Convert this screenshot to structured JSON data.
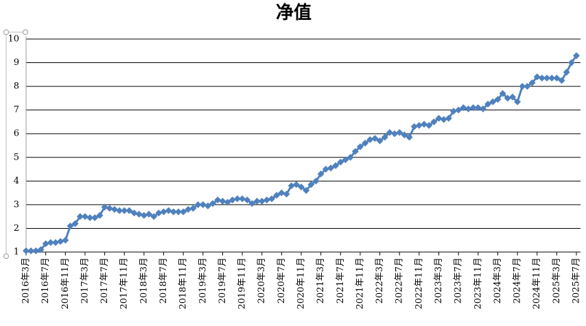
{
  "chart_data": {
    "type": "line",
    "title": "净值",
    "categories": [
      "2016年3月",
      null,
      null,
      null,
      "2016年7月",
      null,
      null,
      null,
      "2016年11月",
      null,
      null,
      null,
      "2017年3月",
      null,
      null,
      null,
      "2017年7月",
      null,
      null,
      null,
      "2017年11月",
      null,
      null,
      null,
      "2018年3月",
      null,
      null,
      null,
      "2018年7月",
      null,
      null,
      null,
      "2018年11月",
      null,
      null,
      null,
      "2019年3月",
      null,
      null,
      null,
      "2019年7月",
      null,
      null,
      null,
      "2019年11月",
      null,
      null,
      null,
      "2020年3月",
      null,
      null,
      null,
      "2020年7月",
      null,
      null,
      null,
      "2020年11月",
      null,
      null,
      null,
      "2021年3月",
      null,
      null,
      null,
      "2021年7月",
      null,
      null,
      null,
      "2021年11月",
      null,
      null,
      null,
      "2022年3月",
      null,
      null,
      null,
      "2022年7月",
      null,
      null,
      null,
      "2022年11月",
      null,
      null,
      null,
      "2023年3月",
      null,
      null,
      null,
      "2023年7月",
      null,
      null,
      null,
      "2023年11月",
      null,
      null,
      null,
      "2024年3月",
      null,
      null,
      null,
      "2024年7月",
      null,
      null,
      null,
      "2024年11月",
      null,
      null,
      null,
      "2025年3月",
      null,
      null,
      null,
      "2025年7月"
    ],
    "values": [
      1.05,
      1.05,
      1.05,
      1.1,
      1.35,
      1.4,
      1.4,
      1.45,
      1.5,
      2.1,
      2.2,
      2.5,
      2.5,
      2.45,
      2.45,
      2.55,
      2.9,
      2.85,
      2.8,
      2.75,
      2.75,
      2.75,
      2.65,
      2.6,
      2.55,
      2.6,
      2.5,
      2.65,
      2.7,
      2.75,
      2.7,
      2.7,
      2.7,
      2.8,
      2.85,
      3.0,
      3.0,
      2.95,
      3.05,
      3.2,
      3.15,
      3.1,
      3.2,
      3.25,
      3.25,
      3.2,
      3.05,
      3.15,
      3.15,
      3.2,
      3.25,
      3.4,
      3.5,
      3.45,
      3.8,
      3.85,
      3.75,
      3.6,
      3.85,
      4.0,
      4.3,
      4.5,
      4.55,
      4.65,
      4.8,
      4.9,
      5.0,
      5.25,
      5.45,
      5.6,
      5.75,
      5.8,
      5.7,
      5.85,
      6.05,
      6.0,
      6.05,
      5.95,
      5.85,
      6.3,
      6.35,
      6.4,
      6.35,
      6.5,
      6.65,
      6.6,
      6.65,
      6.95,
      7.0,
      7.1,
      7.05,
      7.1,
      7.1,
      7.05,
      7.25,
      7.35,
      7.45,
      7.7,
      7.5,
      7.55,
      7.35,
      8.0,
      8.0,
      8.15,
      8.4,
      8.35,
      8.35,
      8.35,
      8.35,
      8.25,
      8.6,
      9.0,
      9.3
    ],
    "color": "#4f81bd",
    "ylim": [
      1,
      10
    ],
    "yticks": [
      1,
      2,
      3,
      4,
      5,
      6,
      7,
      8,
      9,
      10
    ],
    "grid": true
  }
}
